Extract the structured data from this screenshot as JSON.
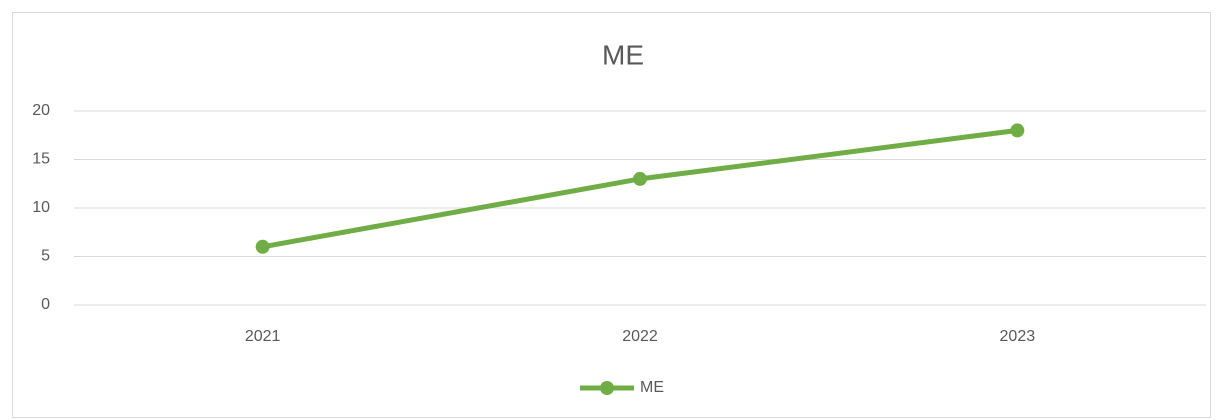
{
  "chart_data": {
    "type": "line",
    "title": "ME",
    "categories": [
      "2021",
      "2022",
      "2023"
    ],
    "series": [
      {
        "name": "ME",
        "color": "#70ad47",
        "values": [
          6,
          13,
          18
        ]
      }
    ],
    "ylim": [
      0,
      20
    ],
    "yticks": [
      0,
      5,
      10,
      15,
      20
    ],
    "grid": true,
    "legend": "bottom"
  }
}
